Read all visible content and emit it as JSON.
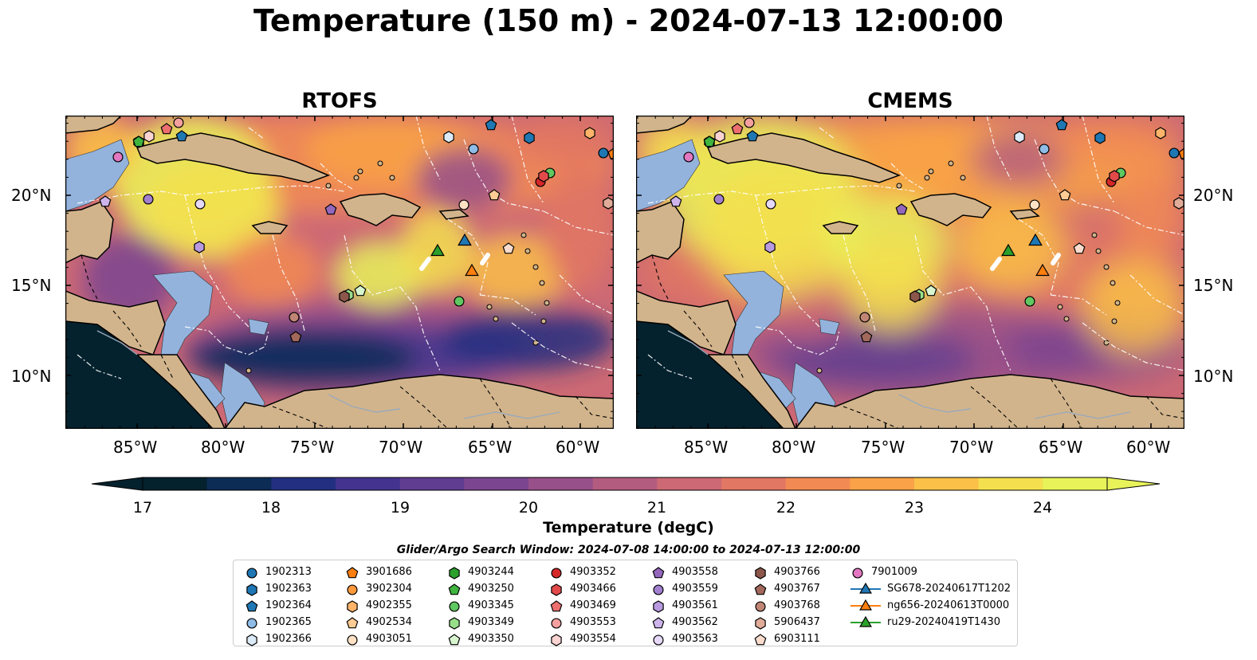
{
  "title": "Temperature (150 m) - 2024-07-13 12:00:00",
  "panels": [
    {
      "title": "RTOFS"
    },
    {
      "title": "CMEMS"
    }
  ],
  "axes": {
    "lon_ticks": [
      "85°W",
      "80°W",
      "75°W",
      "70°W",
      "65°W",
      "60°W"
    ],
    "lat_ticks": [
      "20°N",
      "15°N",
      "10°N"
    ]
  },
  "colorbar": {
    "label": "Temperature (degC)",
    "ticks": [
      "17",
      "18",
      "19",
      "20",
      "21",
      "22",
      "23",
      "24"
    ],
    "range": [
      17,
      24.5
    ],
    "colors": [
      "#04222e",
      "#0c2c56",
      "#232f80",
      "#44348f",
      "#603d91",
      "#7b4590",
      "#975089",
      "#b35c7f",
      "#cc6974",
      "#e27763",
      "#f28b53",
      "#f9a247",
      "#fac048",
      "#f4e04f",
      "#e8f35a"
    ]
  },
  "legend": {
    "title": "Glider/Argo Search Window: 2024-07-08 14:00:00 to 2024-07-13 12:00:00",
    "items": [
      {
        "label": "1902313",
        "shape": "circle",
        "color": "#1f77b4"
      },
      {
        "label": "1902363",
        "shape": "hexagon",
        "color": "#1f77b4"
      },
      {
        "label": "1902364",
        "shape": "pentagon",
        "color": "#1f77b4"
      },
      {
        "label": "1902365",
        "shape": "circle",
        "color": "#8fbce6"
      },
      {
        "label": "1902366",
        "shape": "hexagon",
        "color": "#dbeaf7"
      },
      {
        "label": "3901686",
        "shape": "pentagon",
        "color": "#ff7f0e"
      },
      {
        "label": "3902304",
        "shape": "circle",
        "color": "#ff9a3c"
      },
      {
        "label": "4902355",
        "shape": "hexagon",
        "color": "#ffb46a"
      },
      {
        "label": "4902534",
        "shape": "pentagon",
        "color": "#ffcb94"
      },
      {
        "label": "4903051",
        "shape": "circle",
        "color": "#ffe2c4"
      },
      {
        "label": "4903244",
        "shape": "hexagon",
        "color": "#2ca02c"
      },
      {
        "label": "4903250",
        "shape": "pentagon",
        "color": "#3fb43f"
      },
      {
        "label": "4903345",
        "shape": "circle",
        "color": "#60c860"
      },
      {
        "label": "4903349",
        "shape": "hexagon",
        "color": "#98df8a"
      },
      {
        "label": "4903350",
        "shape": "pentagon",
        "color": "#d7f5cf"
      },
      {
        "label": "4903352",
        "shape": "circle",
        "color": "#d62728"
      },
      {
        "label": "4903466",
        "shape": "hexagon",
        "color": "#e24a4a"
      },
      {
        "label": "4903469",
        "shape": "pentagon",
        "color": "#ec6e6e"
      },
      {
        "label": "4903553",
        "shape": "circle",
        "color": "#f4a09e"
      },
      {
        "label": "4903554",
        "shape": "hexagon",
        "color": "#fbd4d2"
      },
      {
        "label": "4903558",
        "shape": "pentagon",
        "color": "#9467bd"
      },
      {
        "label": "4903559",
        "shape": "circle",
        "color": "#a27fcf"
      },
      {
        "label": "4903561",
        "shape": "hexagon",
        "color": "#b99ae0"
      },
      {
        "label": "4903562",
        "shape": "pentagon",
        "color": "#cdb5ec"
      },
      {
        "label": "4903563",
        "shape": "circle",
        "color": "#e6d8f7"
      },
      {
        "label": "4903766",
        "shape": "hexagon",
        "color": "#8c564b"
      },
      {
        "label": "4903767",
        "shape": "pentagon",
        "color": "#a2685c"
      },
      {
        "label": "4903768",
        "shape": "circle",
        "color": "#c08574"
      },
      {
        "label": "5906437",
        "shape": "hexagon",
        "color": "#e0ab98"
      },
      {
        "label": "6903111",
        "shape": "pentagon",
        "color": "#f9dccd"
      },
      {
        "label": "7901009",
        "shape": "circle",
        "color": "#e377c2"
      },
      {
        "label": "SG678-20240617T1202",
        "shape": "triangle",
        "color": "#1f77b4"
      },
      {
        "label": "ng656-20240613T0000",
        "shape": "triangle",
        "color": "#ff7f0e"
      },
      {
        "label": "ru29-20240419T1430",
        "shape": "triangle",
        "color": "#2ca02c"
      }
    ]
  },
  "map_colors": {
    "land": "#d2b48c",
    "shelf": "#93b3dd",
    "deep_cold": "#04222e"
  }
}
